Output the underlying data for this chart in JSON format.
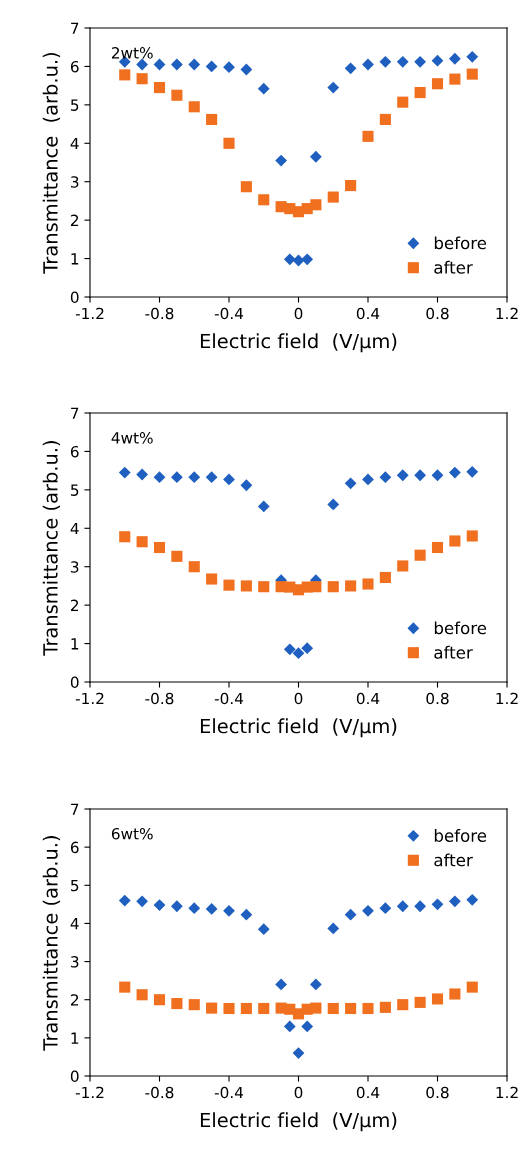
{
  "chart_data": [
    {
      "type": "scatter",
      "annotations": [
        "2wt%"
      ],
      "xlabel": "Electric field  (V/μm)",
      "ylabel": "Transmittance  (arb.u.)",
      "xlim": [
        -1.2,
        1.2
      ],
      "xticks": [
        -1.2,
        -0.8,
        -0.4,
        0,
        0.4,
        0.8,
        1.2
      ],
      "ylim": [
        0,
        7
      ],
      "yticks": [
        0,
        1,
        2,
        3,
        4,
        5,
        6,
        7
      ],
      "grid": false,
      "legend": "bottom right",
      "x": [
        -1,
        -0.9,
        -0.8,
        -0.7,
        -0.6,
        -0.5,
        -0.4,
        -0.3,
        -0.2,
        -0.1,
        -0.05,
        0,
        0.05,
        0.1,
        0.2,
        0.3,
        0.4,
        0.5,
        0.6,
        0.7,
        0.8,
        0.9,
        1.0
      ],
      "series": [
        {
          "name": "before",
          "color": "#1f5fbf",
          "marker": "diamond",
          "values": [
            6.12,
            6.05,
            6.05,
            6.05,
            6.05,
            6.0,
            5.98,
            5.92,
            5.42,
            3.55,
            0.98,
            0.95,
            0.98,
            3.65,
            5.45,
            5.95,
            6.05,
            6.12,
            6.12,
            6.12,
            6.15,
            6.2,
            6.25
          ]
        },
        {
          "name": "after",
          "color": "#f07020",
          "marker": "square",
          "values": [
            5.78,
            5.68,
            5.45,
            5.25,
            4.95,
            4.62,
            4.0,
            2.87,
            2.53,
            2.35,
            2.3,
            2.22,
            2.3,
            2.4,
            2.6,
            2.9,
            4.18,
            4.62,
            5.07,
            5.32,
            5.55,
            5.67,
            5.8
          ]
        }
      ]
    },
    {
      "type": "scatter",
      "annotations": [
        "4wt%"
      ],
      "xlabel": "Electric field  (V/μm)",
      "ylabel": "Transmittance (arb.u.)",
      "xlim": [
        -1.2,
        1.2
      ],
      "xticks": [
        -1.2,
        -0.8,
        -0.4,
        0,
        0.4,
        0.8,
        1.2
      ],
      "ylim": [
        0,
        7
      ],
      "yticks": [
        0,
        1,
        2,
        3,
        4,
        5,
        6,
        7
      ],
      "grid": false,
      "legend": "bottom right",
      "x": [
        -1,
        -0.9,
        -0.8,
        -0.7,
        -0.6,
        -0.5,
        -0.4,
        -0.3,
        -0.2,
        -0.1,
        -0.05,
        0,
        0.05,
        0.1,
        0.2,
        0.3,
        0.4,
        0.5,
        0.6,
        0.7,
        0.8,
        0.9,
        1.0
      ],
      "series": [
        {
          "name": "before",
          "color": "#1f5fbf",
          "marker": "diamond",
          "values": [
            5.45,
            5.4,
            5.33,
            5.33,
            5.33,
            5.33,
            5.27,
            5.12,
            4.57,
            2.65,
            0.85,
            0.75,
            0.88,
            2.65,
            4.62,
            5.17,
            5.27,
            5.33,
            5.38,
            5.38,
            5.38,
            5.45,
            5.47
          ]
        },
        {
          "name": "after",
          "color": "#f07020",
          "marker": "square",
          "values": [
            3.78,
            3.65,
            3.5,
            3.27,
            3.0,
            2.68,
            2.52,
            2.5,
            2.48,
            2.48,
            2.47,
            2.4,
            2.47,
            2.48,
            2.48,
            2.5,
            2.55,
            2.72,
            3.02,
            3.3,
            3.5,
            3.67,
            3.8
          ]
        }
      ]
    },
    {
      "type": "scatter",
      "annotations": [
        "6wt%"
      ],
      "xlabel": "Electric field  (V/μm)",
      "ylabel": "Transmittance (arb.u.)",
      "xlim": [
        -1.2,
        1.2
      ],
      "xticks": [
        -1.2,
        -0.8,
        -0.4,
        0,
        0.4,
        0.8,
        1.2
      ],
      "ylim": [
        0,
        7
      ],
      "yticks": [
        0,
        1,
        2,
        3,
        4,
        5,
        6,
        7
      ],
      "grid": false,
      "legend": "top right",
      "x": [
        -1,
        -0.9,
        -0.8,
        -0.7,
        -0.6,
        -0.5,
        -0.4,
        -0.3,
        -0.2,
        -0.1,
        -0.05,
        0,
        0.05,
        0.1,
        0.2,
        0.3,
        0.4,
        0.5,
        0.6,
        0.7,
        0.8,
        0.9,
        1.0
      ],
      "series": [
        {
          "name": "before",
          "color": "#1f5fbf",
          "marker": "diamond",
          "values": [
            4.6,
            4.58,
            4.48,
            4.45,
            4.4,
            4.38,
            4.33,
            4.23,
            3.85,
            2.4,
            1.3,
            0.6,
            1.3,
            2.4,
            3.87,
            4.23,
            4.33,
            4.4,
            4.45,
            4.45,
            4.5,
            4.58,
            4.62
          ]
        },
        {
          "name": "after",
          "color": "#f07020",
          "marker": "square",
          "values": [
            2.33,
            2.13,
            2.0,
            1.9,
            1.87,
            1.78,
            1.77,
            1.77,
            1.77,
            1.78,
            1.75,
            1.63,
            1.75,
            1.78,
            1.77,
            1.77,
            1.77,
            1.8,
            1.87,
            1.93,
            2.02,
            2.15,
            2.33
          ]
        }
      ]
    }
  ]
}
